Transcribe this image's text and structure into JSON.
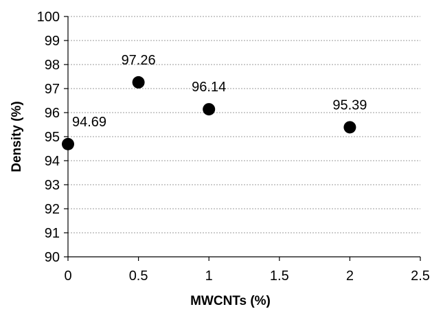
{
  "chart_data": {
    "type": "scatter",
    "title": "",
    "xlabel": "MWCNTs (%)",
    "ylabel": "Density (%)",
    "xlim": [
      0,
      2.5
    ],
    "ylim": [
      90,
      100
    ],
    "x_ticks": [
      "0",
      "0.5",
      "1",
      "1.5",
      "2",
      "2.5"
    ],
    "y_ticks": [
      "90",
      "91",
      "92",
      "93",
      "94",
      "95",
      "96",
      "97",
      "98",
      "99",
      "100"
    ],
    "grid": "horizontal-dashed",
    "legend": "none",
    "marker_color": "#000000",
    "points": [
      {
        "x": 0,
        "y": 94.69,
        "label": "94.69"
      },
      {
        "x": 0.5,
        "y": 97.26,
        "label": "97.26"
      },
      {
        "x": 1,
        "y": 96.14,
        "label": "96.14"
      },
      {
        "x": 2,
        "y": 95.39,
        "label": "95.39"
      }
    ]
  }
}
